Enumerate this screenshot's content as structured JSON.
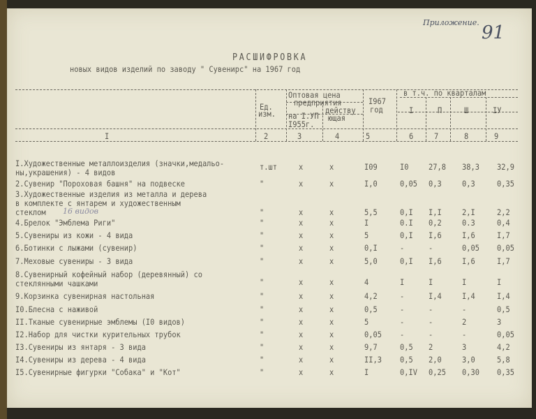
{
  "annotation": {
    "appendix": "Приложение.",
    "page_number": "91"
  },
  "title": "РАСШИФРОВКА",
  "subtitle": "новых видов изделий по заводу \" Сувенирс\" на 1967 год",
  "headers": {
    "unit": [
      "Ед.",
      "изм."
    ],
    "price": [
      "Оптовая цена",
      "предприятия"
    ],
    "price_old": [
      "на I.УП",
      "I955г."
    ],
    "price_current": [
      "действу",
      "ющая"
    ],
    "year": [
      "I967",
      "год"
    ],
    "quarters": "в т.ч. по кварталам",
    "q": [
      "I",
      "П",
      "Ш",
      "IУ"
    ],
    "numbers": [
      "I",
      "2",
      "3",
      "4",
      "5",
      "6",
      "7",
      "8",
      "9"
    ]
  },
  "rows": [
    {
      "name": [
        "I.Художественные металлоизделия (значки,медальо-",
        " ны,украшения) - 4 видов"
      ],
      "unit": "т.шт",
      "p1": "х",
      "p2": "х",
      "year": "I09",
      "q1": "I0",
      "q2": "27,8",
      "q3": "38,3",
      "q4": "32,9"
    },
    {
      "name": [
        "2.Сувенир \"Пороховая башня\" на подвеске"
      ],
      "unit": "\"",
      "p1": "х",
      "p2": "х",
      "year": "I,0",
      "q1": "0,05",
      "q2": "0,3",
      "q3": "0,3",
      "q4": "0,35"
    },
    {
      "name": [
        "3.Художественные изделия из металла и дерева",
        " в комплекте с янтарем и художественным",
        " стеклом"
      ],
      "unit": "\"",
      "p1": "х",
      "p2": "х",
      "year": "5,5",
      "q1": "0,I",
      "q2": "I,I",
      "q3": "2,I",
      "q4": "2,2",
      "note": "16 видов"
    },
    {
      "name": [
        "4.Брелок \"Эмблема Риги\""
      ],
      "unit": "\"",
      "p1": "х",
      "p2": "х",
      "year": "I",
      "q1": "0.I",
      "q2": "0,2",
      "q3": "0.3",
      "q4": "0,4"
    },
    {
      "name": [
        "5.Сувениры из кожи - 4 вида"
      ],
      "unit": "\"",
      "p1": "х",
      "p2": "х",
      "year": "5",
      "q1": "0,I",
      "q2": "I,6",
      "q3": "I,6",
      "q4": "I,7"
    },
    {
      "name": [
        "6.Ботинки с лыжами (сувенир)"
      ],
      "unit": "\"",
      "p1": "х",
      "p2": "х",
      "year": "0,I",
      "q1": "-",
      "q2": "-",
      "q3": "0,05",
      "q4": "0,05"
    },
    {
      "name": [
        "7.Меховые сувениры - 3 вида"
      ],
      "unit": "\"",
      "p1": "х",
      "p2": "х",
      "year": "5,0",
      "q1": "0,I",
      "q2": "I,6",
      "q3": "I,6",
      "q4": "I,7"
    },
    {
      "name": [
        "8.Сувенирный кофейный набор (деревянный) со",
        " стеклянными чашками"
      ],
      "unit": "\"",
      "p1": "х",
      "p2": "х",
      "year": "4",
      "q1": "I",
      "q2": "I",
      "q3": "I",
      "q4": "I"
    },
    {
      "name": [
        "9.Корзинка сувенирная настольная"
      ],
      "unit": "\"",
      "p1": "х",
      "p2": "х",
      "year": "4,2",
      "q1": "-",
      "q2": "I,4",
      "q3": "I,4",
      "q4": "I,4"
    },
    {
      "name": [
        "I0.Блесна с наживой"
      ],
      "unit": "\"",
      "p1": "х",
      "p2": "х",
      "year": "0,5",
      "q1": "-",
      "q2": "-",
      "q3": "-",
      "q4": "0,5"
    },
    {
      "name": [
        "II.Тканые сувенирные эмблемы (I0 видов)"
      ],
      "unit": "\"",
      "p1": "х",
      "p2": "х",
      "year": "5",
      "q1": "-",
      "q2": "-",
      "q3": "2",
      "q4": "3"
    },
    {
      "name": [
        "I2.Набор для чистки курительных трубок"
      ],
      "unit": "\"",
      "p1": "х",
      "p2": "х",
      "year": "0,05",
      "q1": "-",
      "q2": "-",
      "q3": "-",
      "q4": "0,05"
    },
    {
      "name": [
        "I3.Сувениры из янтаря - 3 вида"
      ],
      "unit": "\"",
      "p1": "х",
      "p2": "х",
      "year": "9,7",
      "q1": "0,5",
      "q2": "2",
      "q3": "3",
      "q4": "4,2"
    },
    {
      "name": [
        "I4.Сувениры из дерева - 4 вида"
      ],
      "unit": "\"",
      "p1": "х",
      "p2": "х",
      "year": "II,3",
      "q1": "0,5",
      "q2": "2,0",
      "q3": "3,0",
      "q4": "5,8"
    },
    {
      "name": [
        "I5.Сувенирные фигурки \"Собака\" и \"Кот\""
      ],
      "unit": "\"",
      "p1": "х",
      "p2": "х",
      "year": "I",
      "q1": "0,IV",
      "q2": "0,25",
      "q3": "0,30",
      "q4": "0,35"
    }
  ]
}
